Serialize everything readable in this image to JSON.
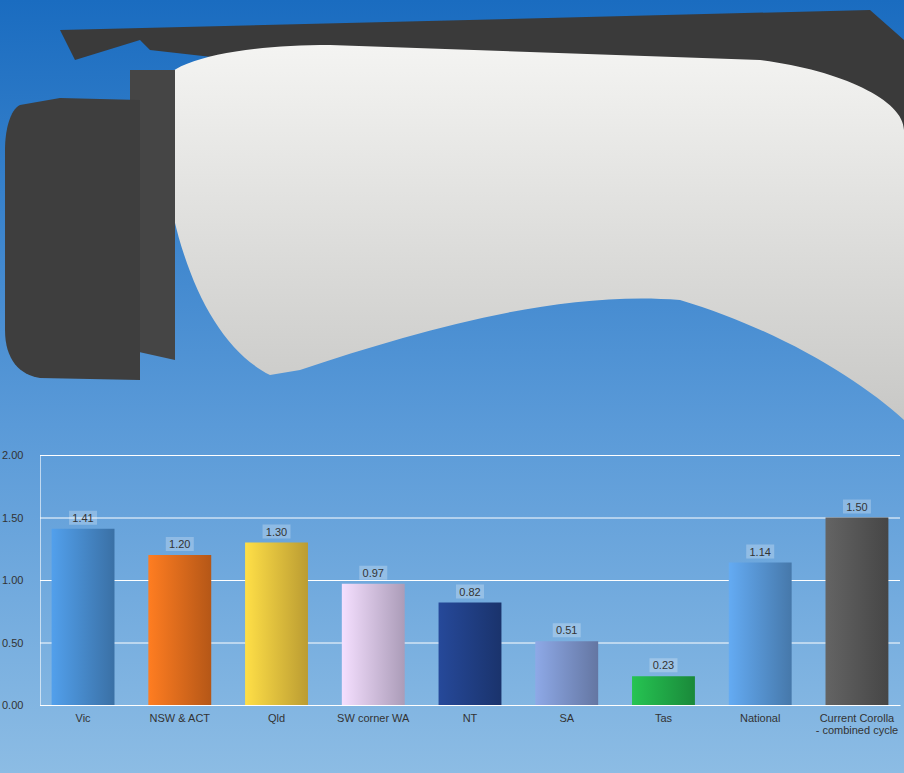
{
  "chart_data": {
    "type": "bar",
    "categories": [
      "Vic",
      "NSW & ACT",
      "Qld",
      "SW corner WA",
      "NT",
      "SA",
      "Tas",
      "National",
      "Current Corolla - combined cycle"
    ],
    "values": [
      1.41,
      1.2,
      1.3,
      0.97,
      0.82,
      0.51,
      0.23,
      1.14,
      1.5
    ],
    "value_labels": [
      "1.41",
      "1.20",
      "1.30",
      "0.97",
      "0.82",
      "0.51",
      "0.23",
      "1.14",
      "1.50"
    ],
    "colors": [
      "#4a90d4",
      "#e8701e",
      "#f0c840",
      "#dcc8ec",
      "#22428a",
      "#8098d0",
      "#22b04a",
      "#5a9ada",
      "#5a5a5a"
    ],
    "ylim": [
      0,
      2
    ],
    "yticks": [
      {
        "value": 0,
        "label": "0.00"
      },
      {
        "value": 0.5,
        "label": "0.50"
      },
      {
        "value": 1,
        "label": "1.00"
      },
      {
        "value": 1.5,
        "label": "1.50"
      },
      {
        "value": 2,
        "label": "2.00"
      }
    ],
    "grid": true,
    "data_labels": true
  }
}
